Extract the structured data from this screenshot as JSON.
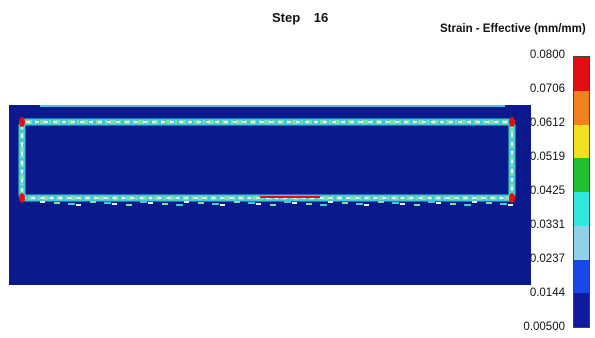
{
  "header": {
    "step_label": "Step",
    "step_number": "16"
  },
  "legend": {
    "title": "Strain - Effective (mm/mm)",
    "ticks": [
      "0.0800",
      "0.0706",
      "0.0612",
      "0.0519",
      "0.0425",
      "0.0331",
      "0.0237",
      "0.0144",
      "0.00500"
    ],
    "band_colors": [
      "#e01010",
      "#f08020",
      "#f0e020",
      "#20c030",
      "#30e8e0",
      "#90d0e8",
      "#1848e8",
      "#101aa0"
    ]
  },
  "contour": {
    "background_color": "#0a1a8c",
    "ring_colors": [
      "#e8f0f0",
      "#7ee0a0",
      "#40c8d8"
    ],
    "hotspot_color": "#e01010"
  }
}
